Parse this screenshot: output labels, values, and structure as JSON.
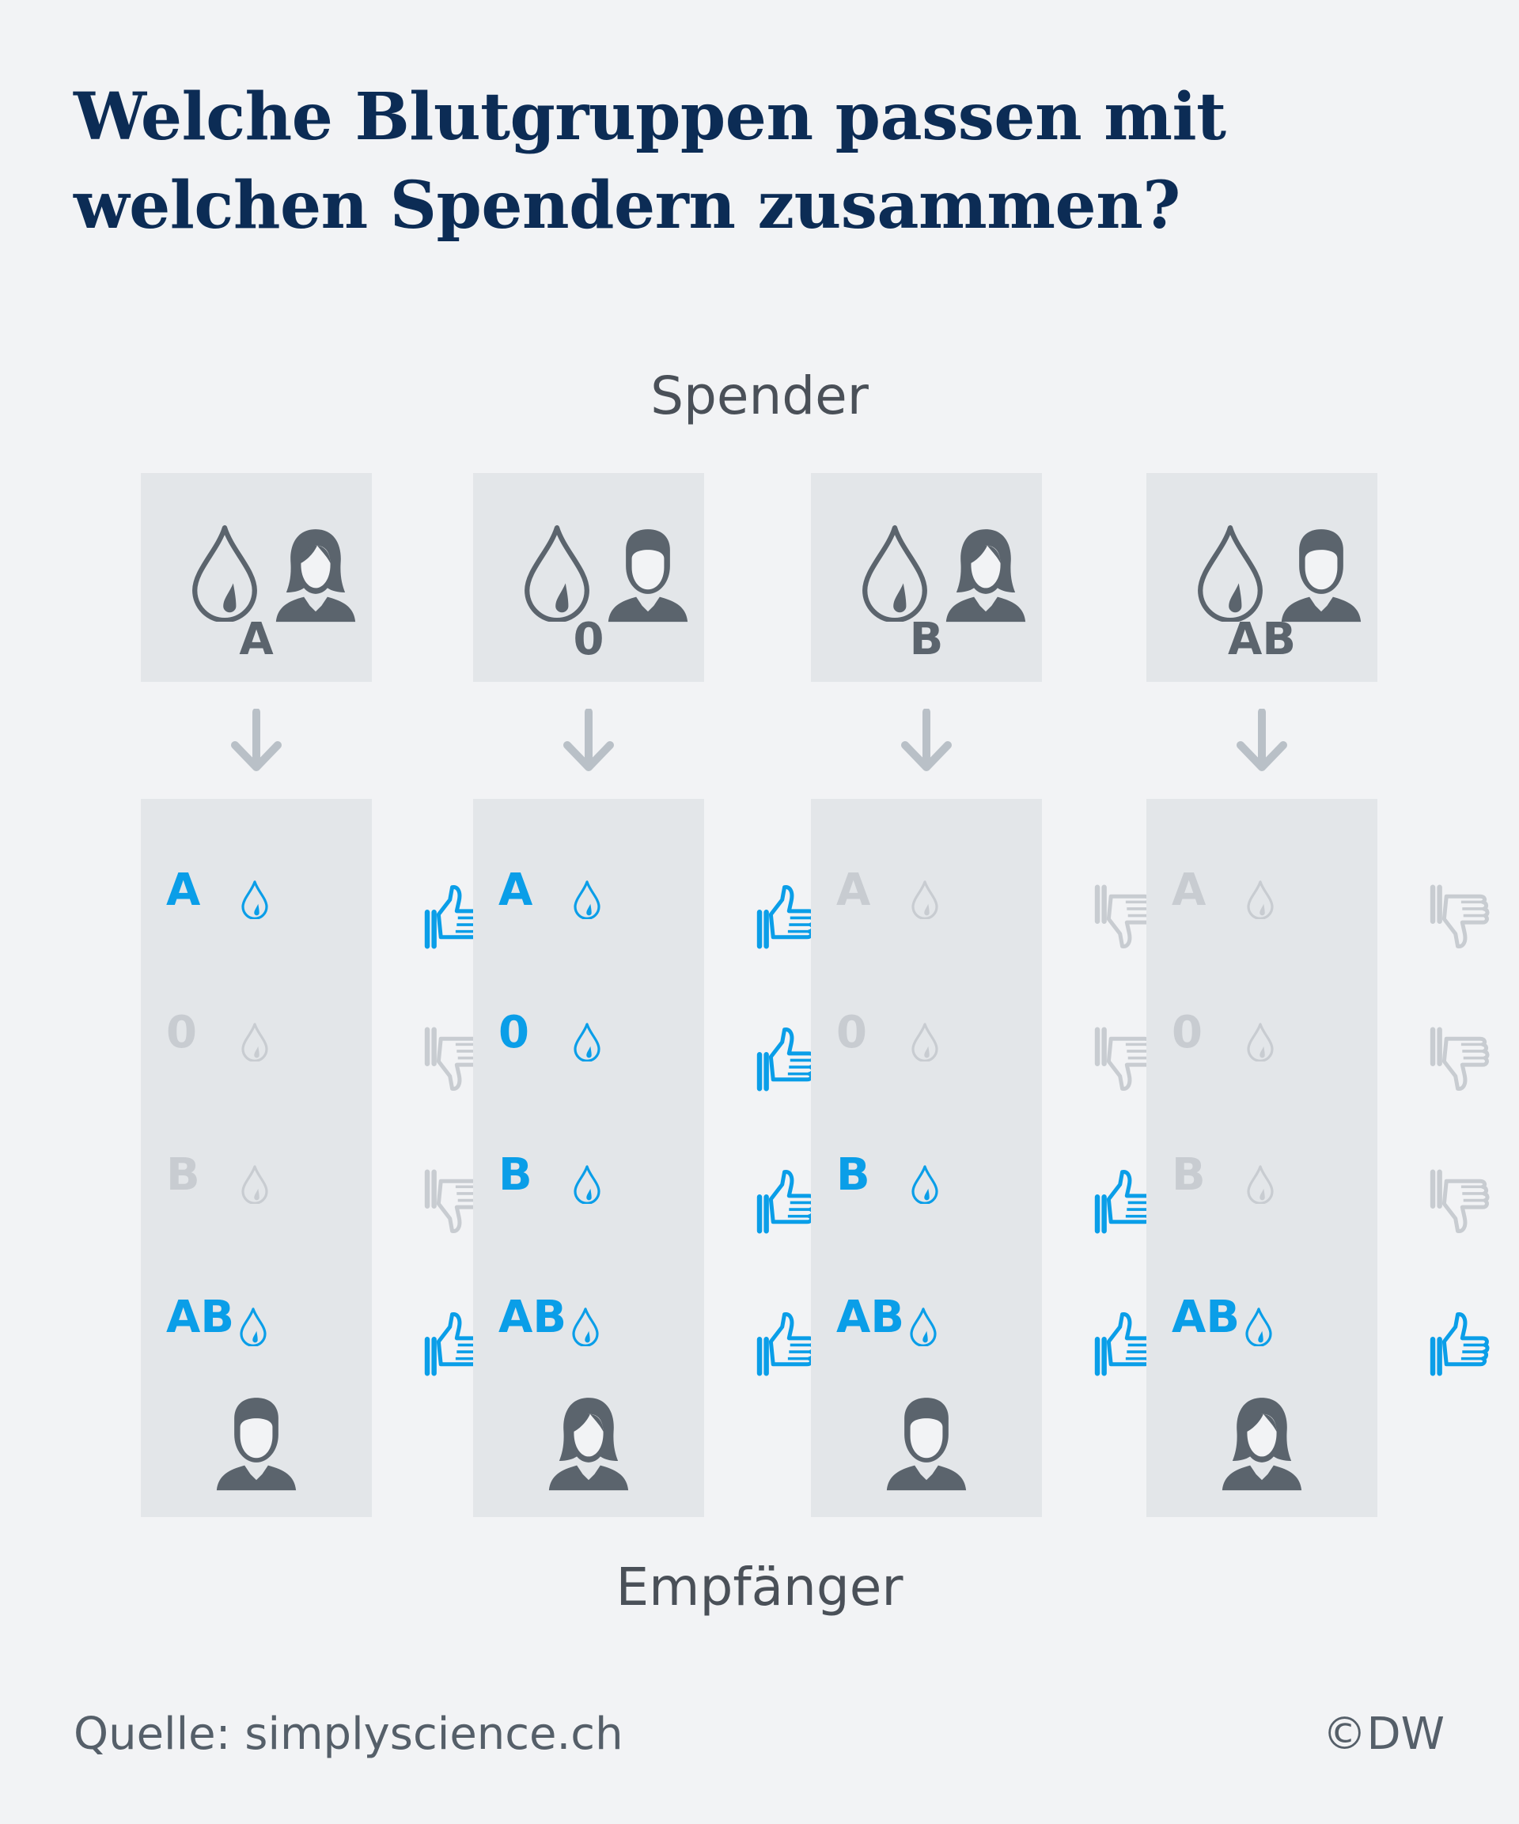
{
  "title_lines": [
    "Welche Blutgruppen passen mit",
    "welchen Spendern zusammen?"
  ],
  "spender_label": "Spender",
  "empfaenger_label": "Empfänger",
  "source": "Quelle: simplyscience.ch",
  "credit": "©DW",
  "colors": {
    "background": "#f2f3f5",
    "panel": "#e3e6e9",
    "title": "#0c2c55",
    "icon_dark": "#5b646d",
    "compatible": "#0a9ee8",
    "incompatible": "#c8ccd1",
    "arrow": "#b9c0c7"
  },
  "recipient_types": [
    "A",
    "0",
    "B",
    "AB"
  ],
  "columns": [
    {
      "donor_type": "A",
      "donor_icon": "female-person-icon",
      "recipient_icon": "male-person-icon",
      "compatibility": [
        {
          "type": "A",
          "compatible": true
        },
        {
          "type": "0",
          "compatible": false
        },
        {
          "type": "B",
          "compatible": false
        },
        {
          "type": "AB",
          "compatible": true
        }
      ]
    },
    {
      "donor_type": "0",
      "donor_icon": "male-person-icon",
      "recipient_icon": "female-person-icon",
      "compatibility": [
        {
          "type": "A",
          "compatible": true
        },
        {
          "type": "0",
          "compatible": true
        },
        {
          "type": "B",
          "compatible": true
        },
        {
          "type": "AB",
          "compatible": true
        }
      ]
    },
    {
      "donor_type": "B",
      "donor_icon": "female-person-icon",
      "recipient_icon": "male-person-icon",
      "compatibility": [
        {
          "type": "A",
          "compatible": false
        },
        {
          "type": "0",
          "compatible": false
        },
        {
          "type": "B",
          "compatible": true
        },
        {
          "type": "AB",
          "compatible": true
        }
      ]
    },
    {
      "donor_type": "AB",
      "donor_icon": "male-person-icon",
      "recipient_icon": "female-person-icon",
      "compatibility": [
        {
          "type": "A",
          "compatible": false
        },
        {
          "type": "0",
          "compatible": false
        },
        {
          "type": "B",
          "compatible": false
        },
        {
          "type": "AB",
          "compatible": true
        }
      ]
    }
  ]
}
